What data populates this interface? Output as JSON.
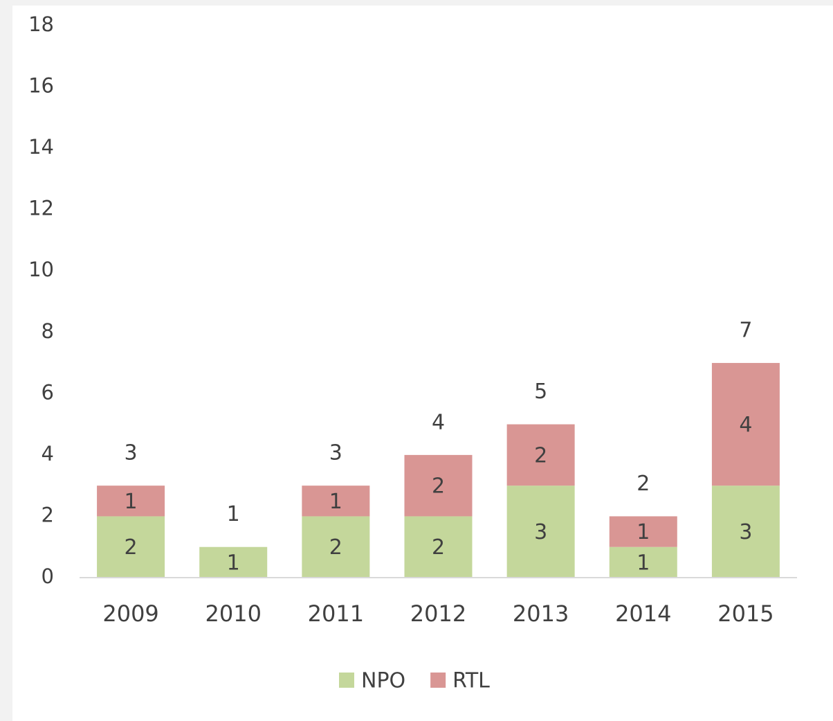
{
  "chart_data": {
    "type": "stacked_bar",
    "categories": [
      "2009",
      "2010",
      "2011",
      "2012",
      "2013",
      "2014",
      "2015"
    ],
    "series": [
      {
        "name": "NPO",
        "color": "#c4d79b",
        "values": [
          2,
          1,
          2,
          2,
          3,
          1,
          3
        ]
      },
      {
        "name": "RTL",
        "color": "#d99694",
        "values": [
          1,
          null,
          1,
          2,
          2,
          1,
          4
        ]
      }
    ],
    "totals": [
      3,
      1,
      3,
      4,
      5,
      2,
      7
    ],
    "ylim": [
      0,
      18
    ],
    "yticks": [
      0,
      2,
      4,
      6,
      8,
      10,
      12,
      14,
      16,
      18
    ],
    "grid": false,
    "legend": "bottom"
  }
}
